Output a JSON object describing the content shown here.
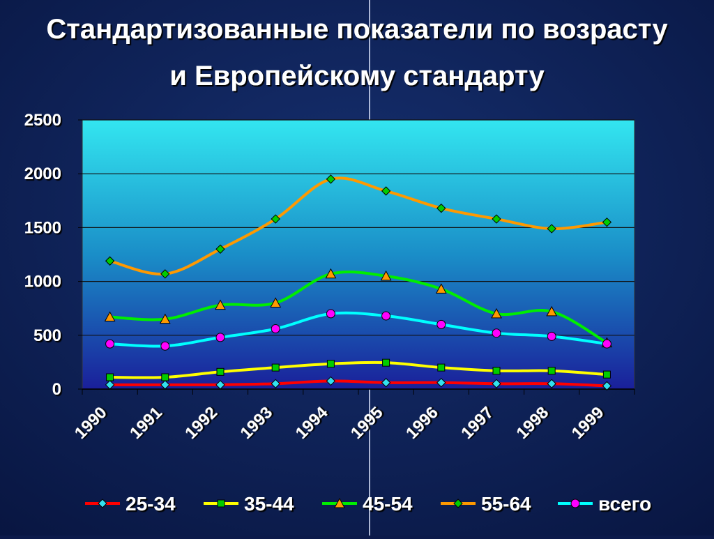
{
  "chart_data": {
    "type": "line",
    "title": "Стандартизованные показатели по возрасту и Европейскому стандарту",
    "categories": [
      "1990",
      "1991",
      "1992",
      "1993",
      "1994",
      "1995",
      "1996",
      "1997",
      "1998",
      "1999"
    ],
    "series": [
      {
        "name": "25-34",
        "color": "#ff0000",
        "marker": "diamond",
        "marker_color": "#33e0f0",
        "values": [
          40,
          40,
          40,
          50,
          75,
          60,
          60,
          50,
          50,
          30
        ]
      },
      {
        "name": "35-44",
        "color": "#ffff00",
        "marker": "square",
        "marker_color": "#00cc00",
        "values": [
          110,
          110,
          160,
          200,
          235,
          245,
          200,
          170,
          170,
          135
        ]
      },
      {
        "name": "45-54",
        "color": "#00ee00",
        "marker": "triangle",
        "marker_color": "#ff9900",
        "values": [
          670,
          650,
          780,
          800,
          1070,
          1050,
          930,
          700,
          720,
          430
        ]
      },
      {
        "name": "55-64",
        "color": "#ff9900",
        "marker": "diamond",
        "marker_color": "#00cc00",
        "values": [
          1190,
          1070,
          1300,
          1580,
          1950,
          1840,
          1680,
          1580,
          1490,
          1550
        ]
      },
      {
        "name": "всего",
        "color": "#00ffff",
        "marker": "circle",
        "marker_color": "#ff00ff",
        "values": [
          420,
          400,
          480,
          560,
          700,
          680,
          600,
          520,
          490,
          420
        ]
      }
    ],
    "ylim": [
      0,
      2500
    ],
    "yticks": [
      0,
      500,
      1000,
      1500,
      2000,
      2500
    ],
    "grid": true,
    "legend": "bottom"
  }
}
